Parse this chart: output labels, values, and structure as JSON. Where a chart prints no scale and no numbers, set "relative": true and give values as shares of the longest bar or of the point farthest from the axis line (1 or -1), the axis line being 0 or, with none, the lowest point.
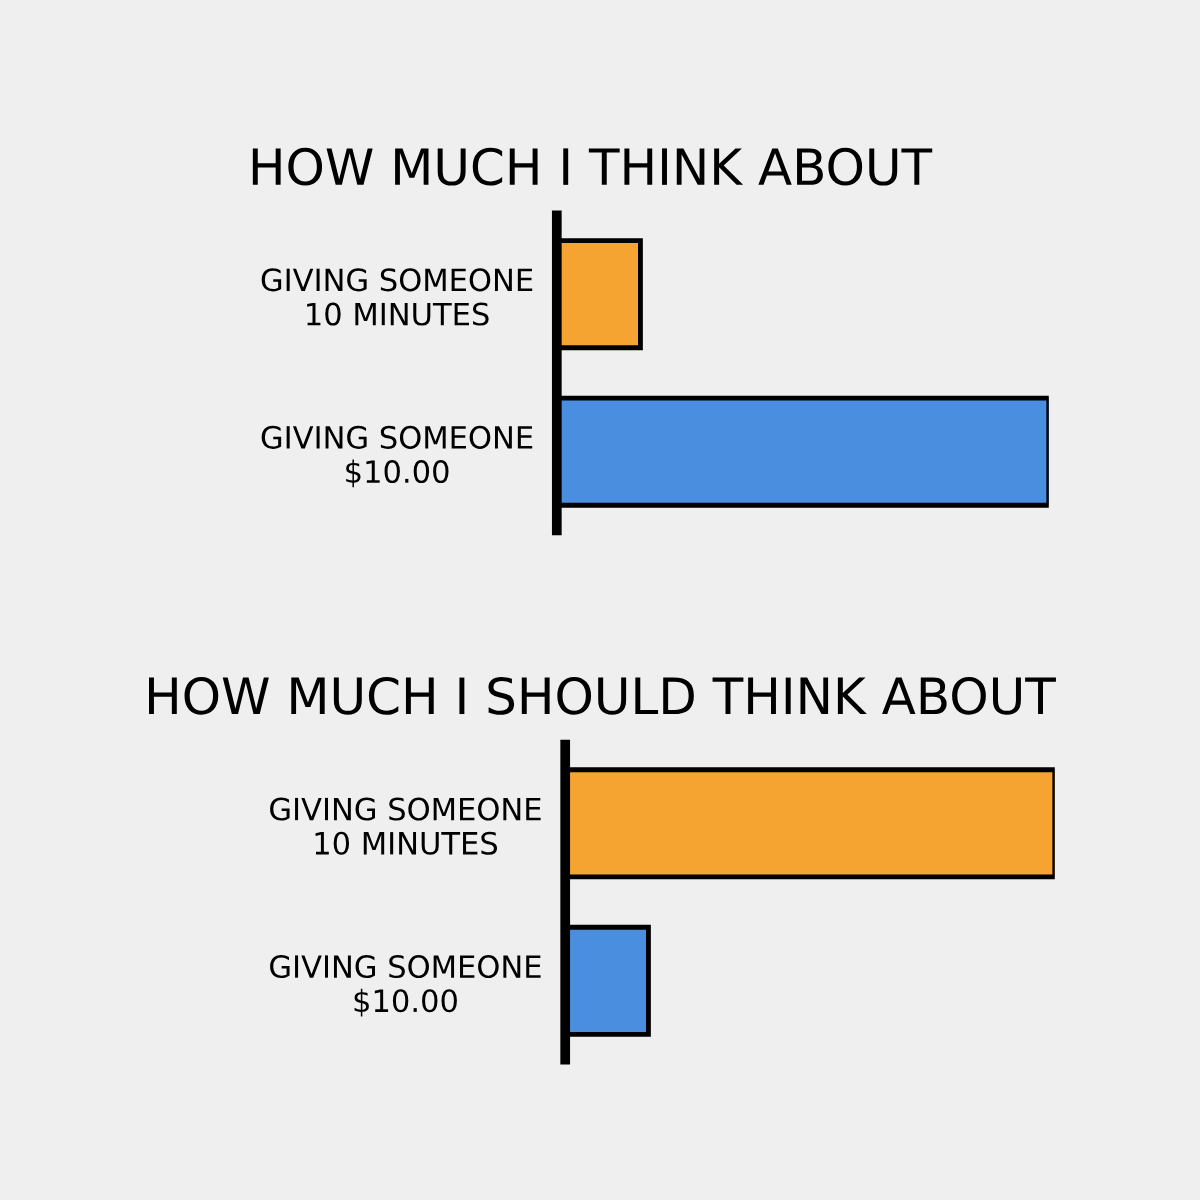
{
  "chart_data": [
    {
      "type": "bar",
      "title": "HOW MUCH I THINK ABOUT",
      "orientation": "horizontal",
      "relative": true,
      "categories": [
        "GIVING SOMEONE\n10 MINUTES",
        "GIVING SOMEONE\n$10.00"
      ],
      "values": [
        0.17,
        1
      ],
      "colors": [
        "#f5a431",
        "#4a8ee0"
      ],
      "grid": false,
      "legend": false
    },
    {
      "type": "bar",
      "title": "HOW MUCH I SHOULD THINK ABOUT",
      "orientation": "horizontal",
      "relative": true,
      "categories": [
        "GIVING SOMEONE\n10 MINUTES",
        "GIVING SOMEONE\n$10.00"
      ],
      "values": [
        1,
        0.17
      ],
      "colors": [
        "#f5a431",
        "#4a8ee0"
      ],
      "grid": false,
      "legend": false
    }
  ]
}
